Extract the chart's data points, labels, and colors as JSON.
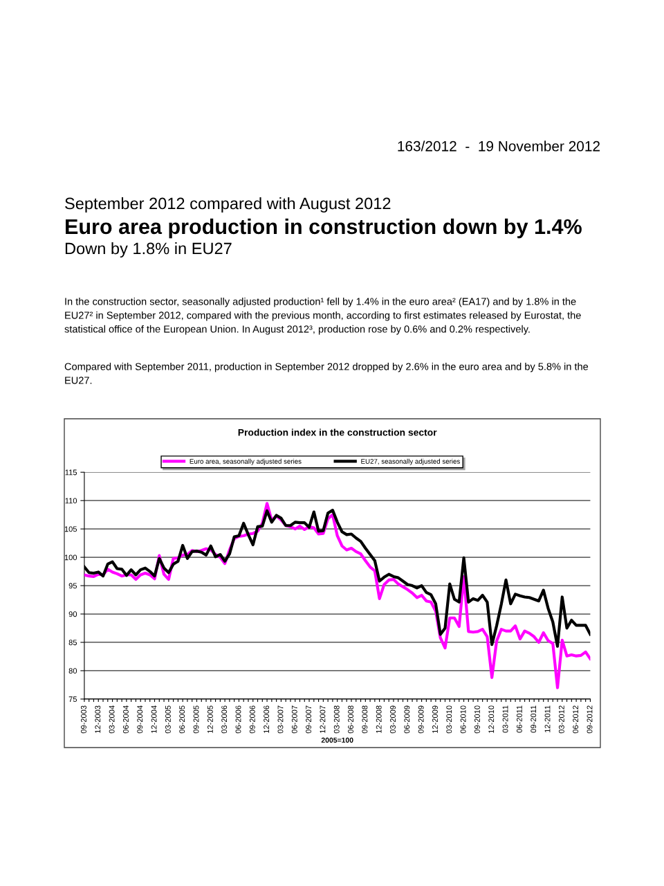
{
  "chart_data": {
    "type": "line",
    "title": "Production index in the construction sector",
    "xlabel": "2005=100",
    "annotations": [
      "163/2012  -  19 November 2012",
      "September 2012 compared with August 2012",
      "Euro area production in construction down by 1.4%",
      "Down by 1.8% in EU27",
      "In the construction sector, seasonally adjusted production¹ fell by 1.4% in the euro area² (EA17) and by 1.8% in the EU27² in September 2012, compared with the previous month, according to first estimates released by Eurostat, the statistical office of the European Union. In August 2012³, production rose by 0.6% and 0.2% respectively.",
      "Compared with September 2011, production in September 2012 dropped by 2.6% in the euro area and by 5.8% in the EU27."
    ],
    "categories": [
      "09-2003",
      null,
      null,
      "12-2003",
      null,
      null,
      "03-2004",
      null,
      null,
      "06-2004",
      null,
      null,
      "09-2004",
      null,
      null,
      "12-2004",
      null,
      null,
      "03-2005",
      null,
      null,
      "06-2005",
      null,
      null,
      "09-2005",
      null,
      null,
      "12-2005",
      null,
      null,
      "03-2006",
      null,
      null,
      "06-2006",
      null,
      null,
      "09-2006",
      null,
      null,
      "12-2006",
      null,
      null,
      "03-2007",
      null,
      null,
      "06-2007",
      null,
      null,
      "09-2007",
      null,
      null,
      "12-2007",
      null,
      null,
      "03-2008",
      null,
      null,
      "06-2008",
      null,
      null,
      "09-2008",
      null,
      null,
      "12-2008",
      null,
      null,
      "03-2009",
      null,
      null,
      "06-2009",
      null,
      null,
      "09-2009",
      null,
      null,
      "12-2009",
      null,
      null,
      "03-2010",
      null,
      null,
      "06-2010",
      null,
      null,
      "09-2010",
      null,
      null,
      "12-2010",
      null,
      null,
      "03-2011",
      null,
      null,
      "06-2011",
      null,
      null,
      "09-2011",
      null,
      null,
      "12-2011",
      null,
      null,
      "03-2012",
      null,
      null,
      "06-2012",
      null,
      null,
      "09-2012"
    ],
    "series": [
      {
        "name": "Euro area, seasonally adjusted series",
        "color": "#ff00ff",
        "values": [
          96.9,
          96.7,
          96.6,
          97.0,
          96.9,
          97.9,
          97.4,
          97.1,
          96.7,
          96.9,
          96.9,
          96.1,
          96.9,
          97.2,
          96.9,
          96.2,
          100.3,
          97.0,
          96.1,
          99.8,
          99.9,
          100.4,
          100.5,
          101.2,
          101.0,
          101.2,
          101.5,
          101.3,
          100.5,
          100.0,
          98.9,
          101.3,
          103.3,
          103.7,
          103.8,
          104.1,
          104.2,
          104.6,
          106.0,
          109.5,
          106.5,
          107.3,
          106.6,
          105.6,
          105.4,
          105.0,
          105.5,
          104.9,
          105.4,
          105.2,
          104.1,
          104.2,
          106.8,
          107.5,
          103.8,
          102.0,
          101.3,
          101.6,
          101.0,
          100.6,
          99.4,
          98.3,
          97.6,
          92.7,
          95.2,
          96.0,
          96.1,
          95.3,
          94.8,
          94.3,
          93.7,
          92.9,
          93.3,
          92.3,
          92.1,
          90.5,
          85.8,
          84.0,
          89.3,
          89.3,
          87.8,
          96.6,
          86.9,
          86.8,
          86.9,
          87.3,
          86.0,
          78.8,
          85.2,
          87.3,
          87.0,
          87.0,
          87.9,
          85.6,
          87.0,
          86.6,
          86.0,
          85.0,
          86.7,
          85.3,
          84.8,
          77.0,
          85.4,
          82.6,
          82.8,
          82.6,
          82.7,
          83.3,
          82.1
        ]
      },
      {
        "name": "EU27, seasonally adjusted series",
        "color": "#000000",
        "values": [
          98.3,
          97.3,
          97.2,
          97.4,
          96.7,
          98.8,
          99.2,
          98.0,
          97.9,
          96.8,
          97.8,
          96.9,
          97.8,
          98.1,
          97.5,
          96.7,
          99.8,
          98.1,
          97.3,
          98.8,
          99.3,
          102.1,
          99.8,
          101.0,
          101.1,
          100.9,
          100.4,
          102.0,
          100.1,
          100.5,
          99.3,
          100.6,
          103.6,
          103.8,
          106.0,
          104.0,
          102.2,
          105.4,
          105.5,
          108.2,
          106.2,
          107.4,
          106.9,
          105.6,
          105.6,
          106.2,
          106.1,
          106.1,
          105.3,
          108.0,
          104.6,
          104.7,
          107.8,
          108.3,
          106.2,
          104.5,
          104.0,
          104.1,
          103.4,
          102.8,
          101.6,
          100.5,
          99.4,
          95.8,
          96.5,
          97.0,
          96.6,
          96.4,
          95.8,
          95.2,
          95.0,
          94.6,
          95.0,
          93.8,
          93.4,
          91.8,
          86.4,
          87.5,
          95.3,
          92.6,
          92.1,
          99.9,
          92.1,
          92.7,
          92.4,
          93.3,
          92.1,
          84.6,
          87.9,
          91.7,
          96.0,
          91.8,
          93.5,
          93.2,
          93.0,
          92.9,
          92.6,
          92.3,
          94.2,
          91.0,
          88.6,
          84.3,
          93.0,
          87.5,
          88.9,
          88.0,
          88.0,
          88.0,
          86.4
        ]
      }
    ],
    "ylim": [
      75,
      115
    ],
    "yticks": [
      75,
      80,
      85,
      90,
      95,
      100,
      105,
      110,
      115
    ],
    "grid": "y",
    "legend": "top",
    "marker": "none",
    "line_style": "solid"
  }
}
